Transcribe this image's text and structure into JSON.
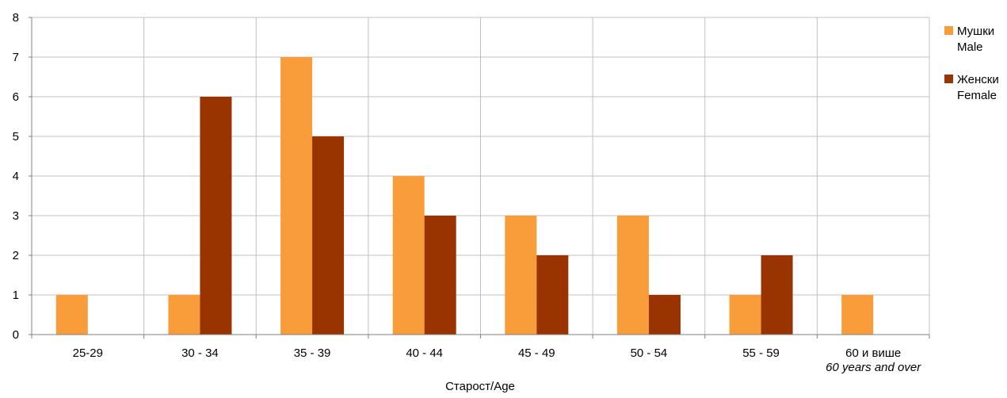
{
  "chart_data": {
    "type": "bar",
    "categories": [
      "25-29",
      "30 - 34",
      "35 - 39",
      "40 - 44",
      "45 - 49",
      "50 - 54",
      "55 - 59",
      "60 и више"
    ],
    "category_sublabels": [
      "",
      "",
      "",
      "",
      "",
      "",
      "",
      "60 years and over"
    ],
    "series": [
      {
        "name": "Мушки",
        "name_en": "Male",
        "color": "#f99d3a",
        "values": [
          1,
          1,
          7,
          4,
          3,
          3,
          1,
          1
        ]
      },
      {
        "name": "Женски",
        "name_en": "Female",
        "color": "#993300",
        "values": [
          0,
          6,
          5,
          3,
          2,
          1,
          2,
          0
        ]
      }
    ],
    "title": "",
    "xlabel": "Старост/Age",
    "ylabel": "",
    "ylim": [
      0,
      8
    ],
    "yticks": [
      0,
      1,
      2,
      3,
      4,
      5,
      6,
      7,
      8
    ],
    "grid": true,
    "legend_position": "right",
    "gridline_color": "#c0c0c0"
  }
}
